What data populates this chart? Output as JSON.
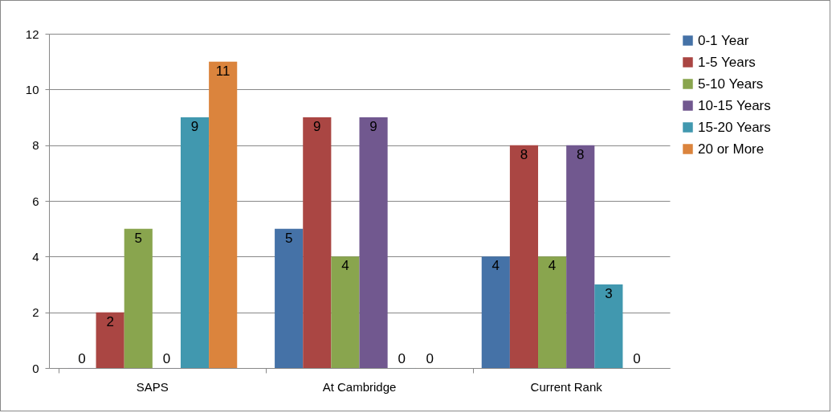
{
  "chart_data": {
    "type": "bar",
    "categories": [
      "SAPS",
      "At Cambridge",
      "Current Rank"
    ],
    "series": [
      {
        "name": "0-1 Year",
        "color": "#4572a7",
        "values": [
          0,
          5,
          4
        ]
      },
      {
        "name": "1-5 Years",
        "color": "#aa4643",
        "values": [
          2,
          9,
          8
        ]
      },
      {
        "name": "5-10 Years",
        "color": "#89a54e",
        "values": [
          5,
          4,
          4
        ]
      },
      {
        "name": "10-15 Years",
        "color": "#71588f",
        "values": [
          0,
          9,
          8
        ]
      },
      {
        "name": "15-20 Years",
        "color": "#4198af",
        "values": [
          9,
          0,
          3
        ]
      },
      {
        "name": "20 or More",
        "color": "#db843d",
        "values": [
          11,
          0,
          0
        ]
      }
    ],
    "ylim": [
      0,
      12
    ],
    "yticks": [
      0,
      2,
      4,
      6,
      8,
      10,
      12
    ],
    "grid": "y",
    "legend": "right",
    "data_labels": true
  }
}
